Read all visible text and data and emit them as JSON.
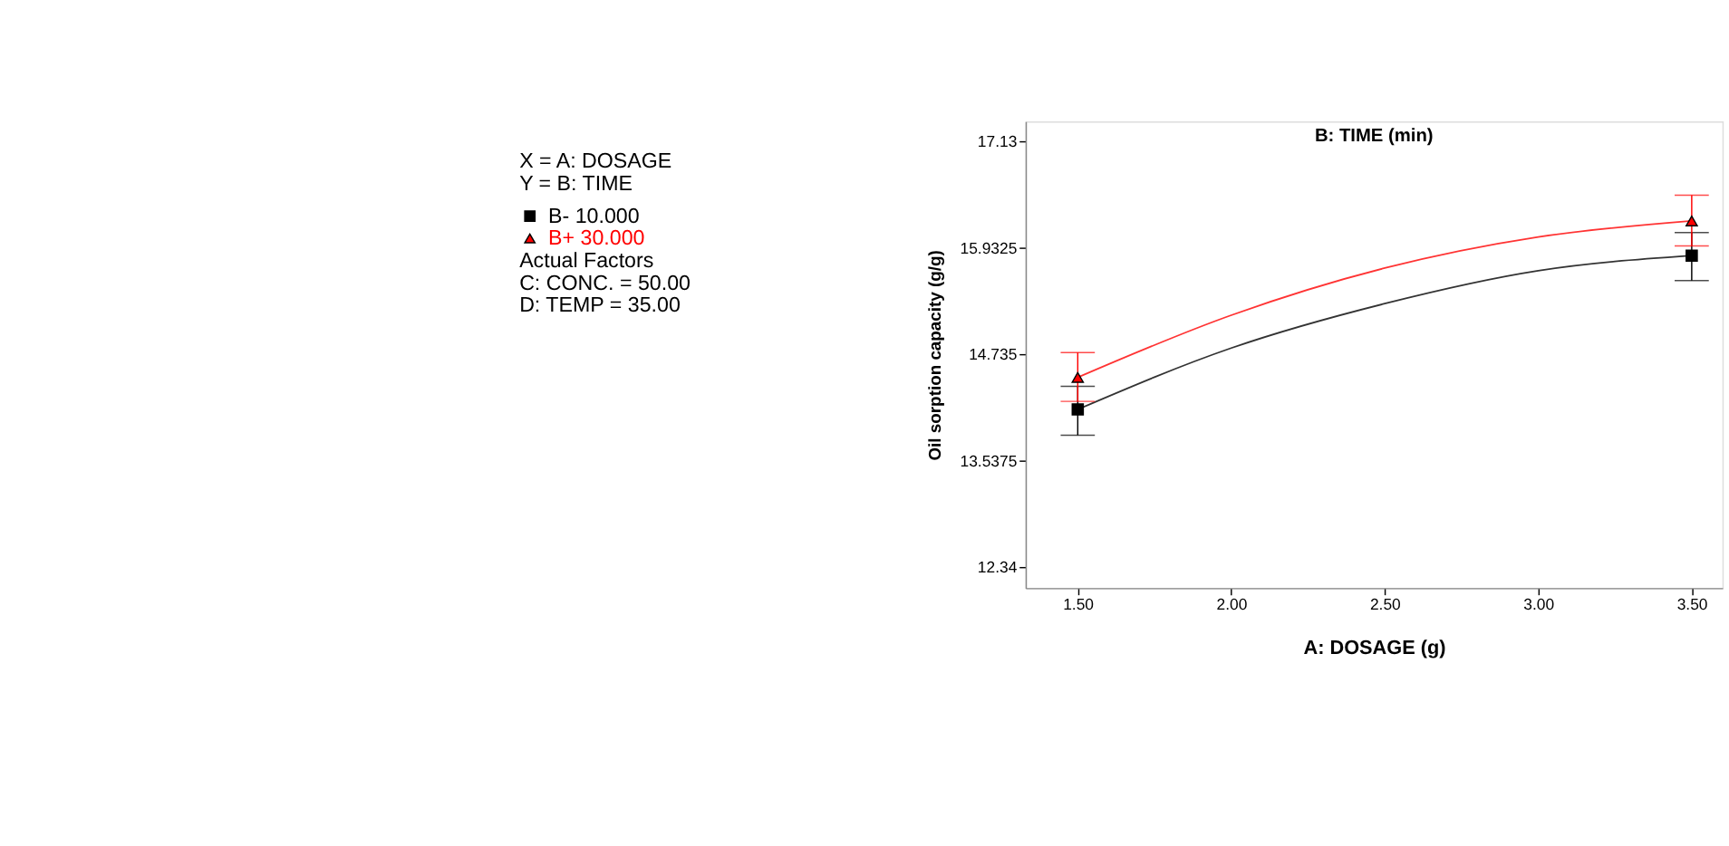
{
  "chart_data": {
    "type": "line",
    "title": "B: TIME (min)",
    "xlabel": "A: DOSAGE (g)",
    "ylabel": "Oil sorption capacity (g/g)",
    "xlim": [
      1.33,
      3.6
    ],
    "xticks": [
      {
        "value": 1.5,
        "label": "1.50"
      },
      {
        "value": 2,
        "label": "2.00"
      },
      {
        "value": 2.5,
        "label": "2.50"
      },
      {
        "value": 3,
        "label": "3.00"
      },
      {
        "value": 3.5,
        "label": "3.50"
      }
    ],
    "ylim": [
      12.1,
      17.35
    ],
    "yticks": [
      12.34,
      13.5375,
      14.735,
      15.9325,
      17.13
    ],
    "grid": false,
    "legend": "left",
    "annotations": [
      "X = A: DOSAGE",
      "Y = B: TIME",
      "Actual Factors",
      "C: CONC. = 50.00",
      "D: TEMP = 35.00"
    ],
    "series": [
      {
        "color": "#333333",
        "line_style": "solid",
        "marker": "none",
        "x": [
          1.5,
          2.0,
          2.5,
          3.0,
          3.5
        ],
        "values": [
          14.11,
          14.8,
          15.3,
          15.67,
          15.84
        ]
      },
      {
        "color": "#ff3333",
        "line_style": "solid",
        "marker": "none",
        "x": [
          1.5,
          2.0,
          2.5,
          3.0,
          3.5
        ],
        "values": [
          14.47,
          15.17,
          15.7,
          16.05,
          16.23
        ]
      },
      {
        "name": "B- 10.000",
        "type": "scatter",
        "marker": "square",
        "color": "#000000",
        "x": [
          1.5,
          3.5
        ],
        "values": [
          14.11,
          15.84
        ],
        "errors": [
          [
            13.82,
            14.37
          ],
          [
            15.56,
            16.1
          ]
        ]
      },
      {
        "name": "B+ 30.000",
        "type": "scatter",
        "marker": "triangle",
        "color": "#ff0000",
        "x": [
          1.5,
          3.5
        ],
        "values": [
          14.47,
          16.23
        ],
        "errors": [
          [
            14.2,
            14.75
          ],
          [
            15.95,
            16.52
          ]
        ]
      }
    ]
  }
}
